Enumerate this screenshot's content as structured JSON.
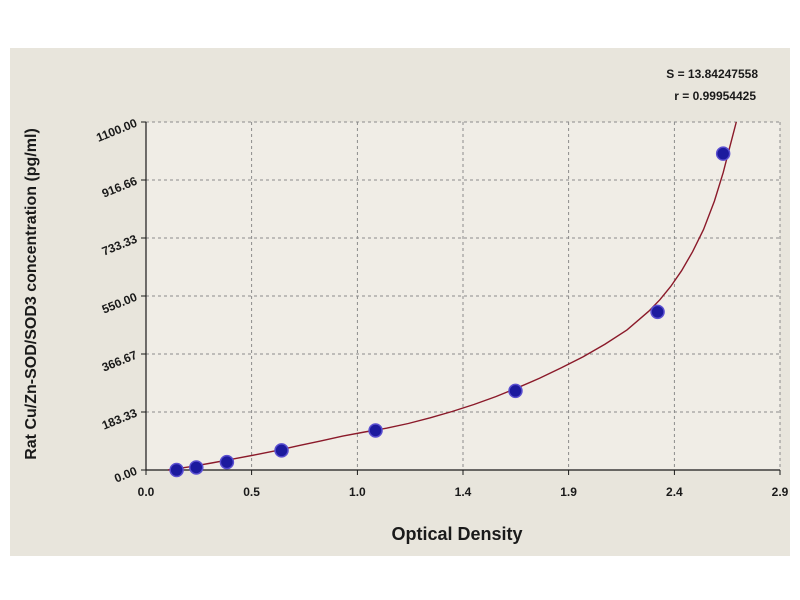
{
  "chart_data": {
    "type": "scatter",
    "title": "",
    "xlabel": "Optical Density",
    "ylabel": "Rat Cu/Zn-SOD/SOD3 concentration (pg/ml)",
    "xlim": [
      0.0,
      2.9
    ],
    "ylim": [
      0.0,
      1100.0
    ],
    "x_ticks": [
      "0.0",
      "0.5",
      "1.0",
      "1.4",
      "1.9",
      "2.4",
      "2.9"
    ],
    "x_tick_values": [
      0.0,
      0.483,
      0.967,
      1.45,
      1.933,
      2.417,
      2.9
    ],
    "y_ticks": [
      "0.00",
      "183.33",
      "366.67",
      "550.00",
      "733.33",
      "916.66",
      "1100.00"
    ],
    "y_tick_values": [
      0.0,
      183.33,
      366.67,
      550.0,
      733.33,
      916.66,
      1100.0
    ],
    "grid": true,
    "series": [
      {
        "points": [
          {
            "x": 0.14,
            "y": 0
          },
          {
            "x": 0.23,
            "y": 8
          },
          {
            "x": 0.37,
            "y": 25
          },
          {
            "x": 0.62,
            "y": 62
          },
          {
            "x": 1.05,
            "y": 125
          },
          {
            "x": 1.69,
            "y": 250
          },
          {
            "x": 2.34,
            "y": 500
          },
          {
            "x": 2.64,
            "y": 1000
          }
        ],
        "fit_curve": [
          {
            "x": 0.1,
            "y": 0
          },
          {
            "x": 0.2,
            "y": 10
          },
          {
            "x": 0.3,
            "y": 22
          },
          {
            "x": 0.4,
            "y": 35
          },
          {
            "x": 0.5,
            "y": 48
          },
          {
            "x": 0.6,
            "y": 62
          },
          {
            "x": 0.7,
            "y": 77
          },
          {
            "x": 0.8,
            "y": 92
          },
          {
            "x": 0.9,
            "y": 107
          },
          {
            "x": 1.0,
            "y": 120
          },
          {
            "x": 1.1,
            "y": 132
          },
          {
            "x": 1.2,
            "y": 147
          },
          {
            "x": 1.3,
            "y": 165
          },
          {
            "x": 1.4,
            "y": 185
          },
          {
            "x": 1.5,
            "y": 207
          },
          {
            "x": 1.6,
            "y": 232
          },
          {
            "x": 1.7,
            "y": 260
          },
          {
            "x": 1.8,
            "y": 290
          },
          {
            "x": 1.9,
            "y": 323
          },
          {
            "x": 2.0,
            "y": 358
          },
          {
            "x": 2.1,
            "y": 398
          },
          {
            "x": 2.2,
            "y": 443
          },
          {
            "x": 2.3,
            "y": 502
          },
          {
            "x": 2.35,
            "y": 538
          },
          {
            "x": 2.4,
            "y": 580
          },
          {
            "x": 2.45,
            "y": 630
          },
          {
            "x": 2.5,
            "y": 690
          },
          {
            "x": 2.55,
            "y": 760
          },
          {
            "x": 2.6,
            "y": 850
          },
          {
            "x": 2.64,
            "y": 940
          },
          {
            "x": 2.67,
            "y": 1020
          },
          {
            "x": 2.7,
            "y": 1100
          }
        ]
      }
    ],
    "stats": {
      "s_text": "S = 13.84247558",
      "r_text": "r = 0.99954425"
    },
    "colors": {
      "background": "#e8e5dc",
      "plot_area": "#f0ede6",
      "grid": "#8c8c8c",
      "marker": "#1c1a9e",
      "marker_stroke": "#5a4fd0",
      "curve": "#8b1a2a"
    }
  }
}
